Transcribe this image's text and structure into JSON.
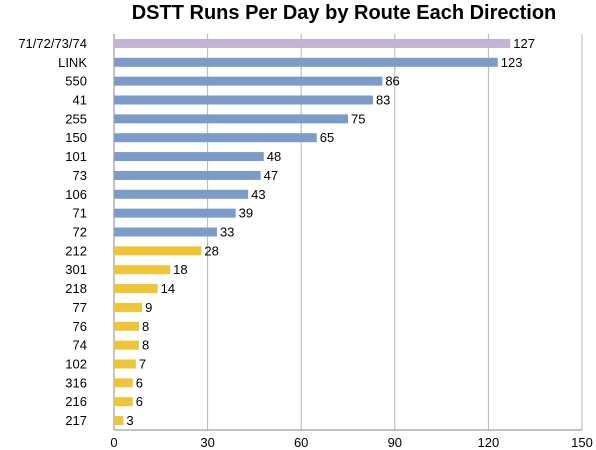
{
  "chart_data": {
    "type": "bar",
    "orientation": "horizontal",
    "title": "DSTT Runs Per Day by Route Each Direction",
    "xlabel": "",
    "ylabel": "",
    "xlim": [
      0,
      150
    ],
    "xticks": [
      0,
      30,
      60,
      90,
      120,
      150
    ],
    "grid": "vertical",
    "legend": "none",
    "colors": {
      "lavender": "#c3b3d6",
      "blue": "#7b9bc9",
      "yellow": "#eec537"
    },
    "categories": [
      "71/72/73/74",
      "LINK",
      "550",
      "41",
      "255",
      "150",
      "101",
      "73",
      "106",
      "71",
      "72",
      "212",
      "301",
      "218",
      "77",
      "76",
      "74",
      "102",
      "316",
      "216",
      "217"
    ],
    "values": [
      127,
      123,
      86,
      83,
      75,
      65,
      48,
      47,
      43,
      39,
      33,
      28,
      18,
      14,
      9,
      8,
      8,
      7,
      6,
      6,
      3
    ],
    "bar_colors": [
      "lavender",
      "blue",
      "blue",
      "blue",
      "blue",
      "blue",
      "blue",
      "blue",
      "blue",
      "blue",
      "blue",
      "yellow",
      "yellow",
      "yellow",
      "yellow",
      "yellow",
      "yellow",
      "yellow",
      "yellow",
      "yellow",
      "yellow"
    ]
  }
}
